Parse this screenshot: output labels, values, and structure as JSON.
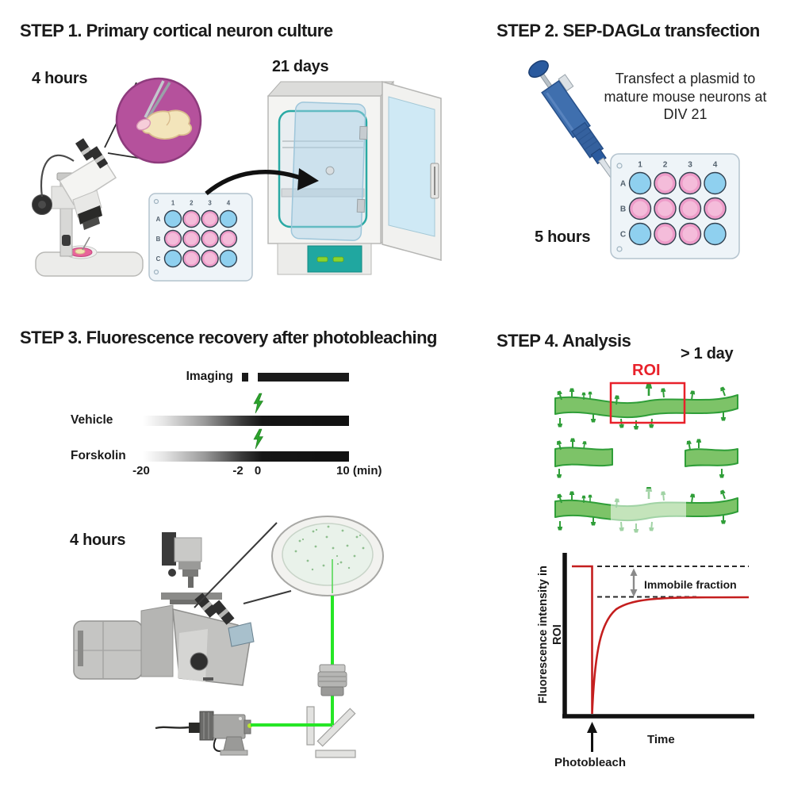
{
  "palette": {
    "well_blue": "#8fd0ef",
    "well_pink_ring": "#ee9cc9",
    "well_pink_center": "#f4bcda",
    "plate_body": "#eef4f8",
    "accent_teal": "#20a7a0",
    "magnifier_purple": "#b5519c",
    "bolt_green": "#2ca22c",
    "laser_green": "#26e626",
    "dendrite_green": "#7dc368",
    "dendrite_outline": "#2f9e38",
    "roi_red": "#e8212a",
    "curve_red": "#c41e1e"
  },
  "step1": {
    "title": "STEP 1. Primary cortical neuron culture",
    "hours": "4 hours",
    "days": "21 days"
  },
  "step2": {
    "title": "STEP 2. SEP-DAGLα transfection",
    "note": "Transfect a plasmid to mature mouse neurons at DIV 21",
    "hours": "5 hours"
  },
  "step3": {
    "title": "STEP 3. Fluorescence recovery after photobleaching",
    "hours": "4 hours",
    "timeline": {
      "imaging": "Imaging",
      "conditions": [
        "Vehicle",
        "Forskolin"
      ],
      "ticks": [
        "-20",
        "-2",
        "0",
        "10 (min)"
      ],
      "bolt_icon": "lightning-bolt-icon"
    }
  },
  "step4": {
    "title": "STEP 4. Analysis",
    "delay": "> 1 day",
    "roi": "ROI",
    "graph": {
      "ylabel": "Fluorescence intensity in ROI",
      "xlabel": "Time",
      "annotation": "Immobile fraction",
      "event": "Photobleach"
    }
  },
  "well_plate": {
    "col_labels": [
      "1",
      "2",
      "3",
      "4"
    ],
    "row_labels": [
      "A",
      "B",
      "C"
    ],
    "wells": [
      [
        "blue",
        "pink",
        "pink",
        "blue"
      ],
      [
        "pink",
        "pink",
        "pink",
        "pink"
      ],
      [
        "blue",
        "pink",
        "pink",
        "blue"
      ]
    ]
  }
}
